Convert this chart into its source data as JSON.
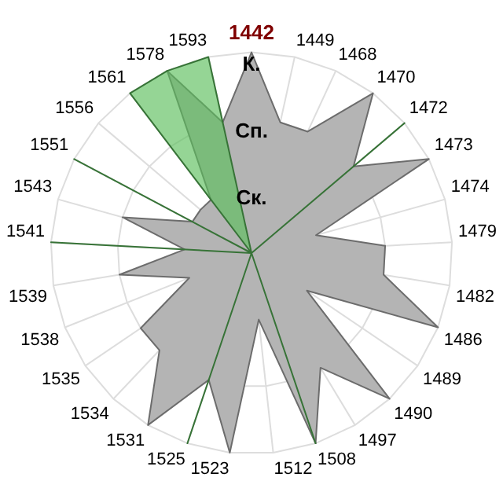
{
  "chart_data": {
    "type": "radar",
    "categories": [
      "1442",
      "1449",
      "1468",
      "1470",
      "1472",
      "1473",
      "1474",
      "1479",
      "1482",
      "1486",
      "1489",
      "1490",
      "1497",
      "1508",
      "1512",
      "1523",
      "1525",
      "1531",
      "1534",
      "1535",
      "1538",
      "1539",
      "1541",
      "1543",
      "1551",
      "1556",
      "1561",
      "1578",
      "1593"
    ],
    "ylim": [
      0,
      3
    ],
    "yticks": [
      {
        "value": 1,
        "label": "Ск."
      },
      {
        "value": 2,
        "label": "Сп."
      },
      {
        "value": 3,
        "label": "К."
      }
    ],
    "grid": true,
    "legend": false,
    "series": [
      {
        "color": "#b4b4b4",
        "values": [
          3,
          2,
          2,
          3,
          2,
          3,
          1,
          2,
          2,
          3,
          1,
          3,
          2,
          3,
          1,
          3,
          2,
          3,
          2,
          2,
          1,
          2,
          1,
          2,
          1,
          1,
          1,
          3,
          2
        ]
      },
      {
        "color": "#5cbf5c",
        "values": [
          0,
          0,
          0,
          0,
          3,
          0,
          0,
          0,
          0,
          0,
          0,
          0,
          0,
          3,
          0,
          0,
          3,
          0,
          0,
          0,
          0,
          0,
          3,
          0,
          3,
          0,
          3,
          3,
          3
        ]
      }
    ]
  }
}
